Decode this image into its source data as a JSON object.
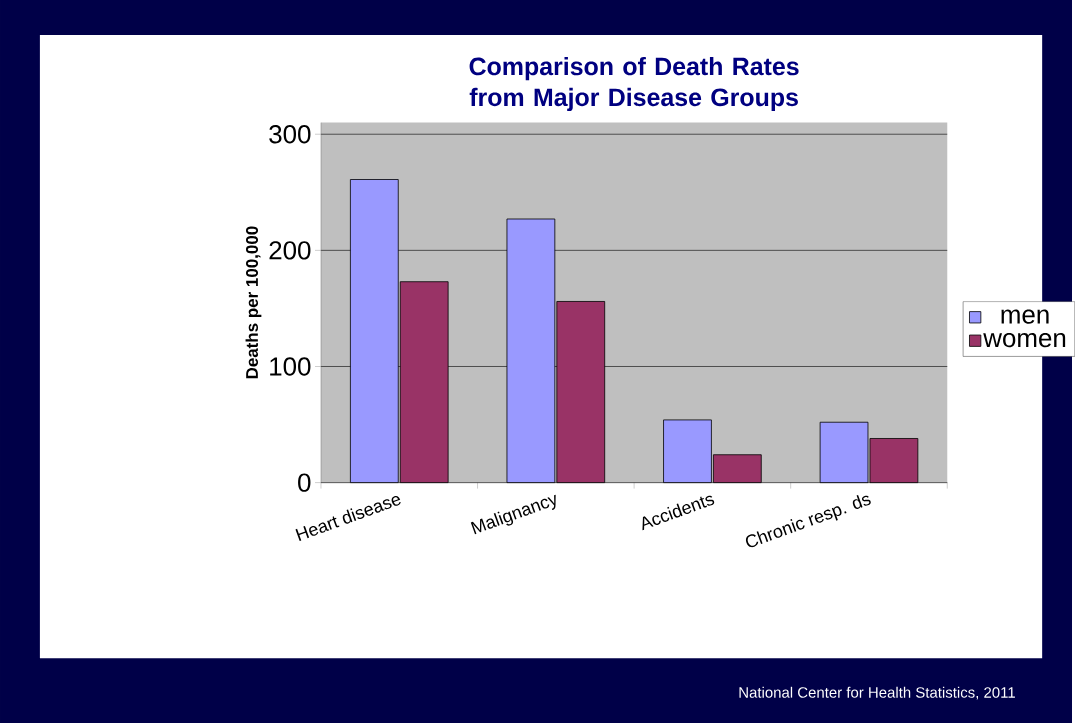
{
  "chart_data": {
    "type": "bar",
    "title": "Comparison of Death Rates from Major Disease Groups",
    "ylabel": "Deaths per 100,000",
    "categories": [
      "Heart disease",
      "Malignancy",
      "Accidents",
      "Chronic resp. ds"
    ],
    "series": [
      {
        "name": "men",
        "color": "#9999ff",
        "values": [
          261,
          227,
          54,
          52
        ]
      },
      {
        "name": "women",
        "color": "#993366",
        "values": [
          173,
          156,
          24,
          38
        ]
      }
    ],
    "ylim": [
      0,
      310
    ],
    "yticks": [
      0,
      100,
      200,
      300
    ],
    "grid": "y",
    "legend": "right",
    "annotations": [
      "National Center for Health Statistics,  2011"
    ]
  }
}
